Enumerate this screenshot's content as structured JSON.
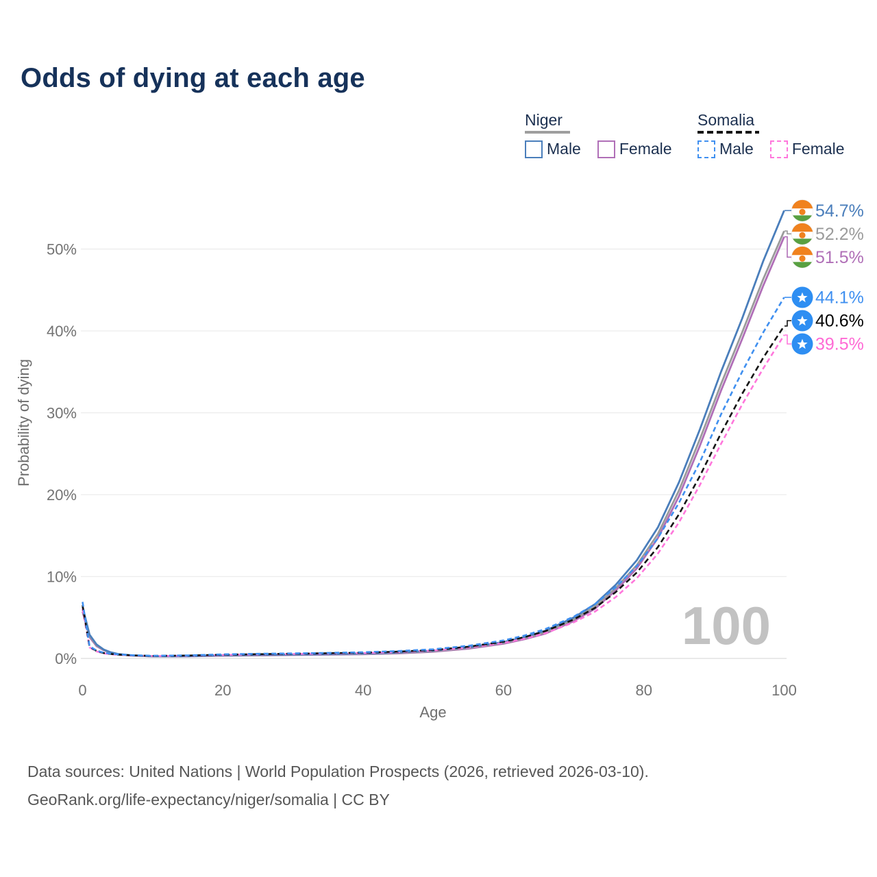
{
  "title": "Odds of dying at each age",
  "legend": {
    "groups": [
      {
        "label": "Niger",
        "line_style": "solid",
        "items": [
          {
            "label": "Male",
            "color": "#4a7ebb"
          },
          {
            "label": "Female",
            "color": "#b06fb7"
          }
        ]
      },
      {
        "label": "Somalia",
        "line_style": "dashed",
        "items": [
          {
            "label": "Male",
            "color": "#4090f0"
          },
          {
            "label": "Female",
            "color": "#ff77dc"
          }
        ]
      }
    ]
  },
  "chart_data": {
    "type": "line",
    "title": "Odds of dying at each age",
    "xlabel": "Age",
    "ylabel": "Probability of dying",
    "xlim": [
      0,
      100
    ],
    "ylim_pct": [
      0,
      57
    ],
    "x_ticks": [
      0,
      20,
      40,
      60,
      80,
      100
    ],
    "y_ticks_pct": [
      0,
      10,
      20,
      30,
      40,
      50
    ],
    "grid": "horizontal",
    "hover_age_indicator": "100",
    "flags": {
      "niger": {
        "bands": [
          "#f0821e",
          "#ffffff",
          "#58a041"
        ],
        "dot": "#f0821e"
      },
      "somalia": {
        "circle": "#2e8ef2",
        "star": "#ffffff"
      }
    },
    "series": [
      {
        "name": "Niger Female",
        "country": "niger",
        "sex": "female",
        "color": "#b06fb7",
        "dash": "solid",
        "end_label": "51.5%",
        "label_color": "#b06fb7",
        "points": [
          [
            0,
            5.7
          ],
          [
            1,
            2.6
          ],
          [
            2,
            1.5
          ],
          [
            3,
            1.0
          ],
          [
            4,
            0.67
          ],
          [
            5,
            0.5
          ],
          [
            7,
            0.34
          ],
          [
            10,
            0.24
          ],
          [
            15,
            0.25
          ],
          [
            20,
            0.33
          ],
          [
            25,
            0.37
          ],
          [
            30,
            0.42
          ],
          [
            35,
            0.46
          ],
          [
            40,
            0.52
          ],
          [
            45,
            0.62
          ],
          [
            50,
            0.82
          ],
          [
            55,
            1.2
          ],
          [
            60,
            1.8
          ],
          [
            63,
            2.35
          ],
          [
            66,
            3.05
          ],
          [
            70,
            4.55
          ],
          [
            73,
            6.05
          ],
          [
            76,
            8.3
          ],
          [
            79,
            11.0
          ],
          [
            82,
            14.7
          ],
          [
            85,
            19.8
          ],
          [
            88,
            26.0
          ],
          [
            91,
            32.7
          ],
          [
            94,
            39.0
          ],
          [
            97,
            45.5
          ],
          [
            100,
            51.5
          ]
        ]
      },
      {
        "name": "Niger Both sexes",
        "country": "niger",
        "sex": "both",
        "color": "#9b9b9b",
        "dash": "solid",
        "end_label": "52.2%",
        "label_color": "#9b9b9b",
        "points": [
          [
            0,
            6.0
          ],
          [
            1,
            2.75
          ],
          [
            2,
            1.6
          ],
          [
            3,
            1.05
          ],
          [
            4,
            0.7
          ],
          [
            5,
            0.52
          ],
          [
            7,
            0.36
          ],
          [
            10,
            0.255
          ],
          [
            15,
            0.265
          ],
          [
            20,
            0.36
          ],
          [
            25,
            0.4
          ],
          [
            30,
            0.45
          ],
          [
            35,
            0.5
          ],
          [
            40,
            0.56
          ],
          [
            45,
            0.67
          ],
          [
            50,
            0.88
          ],
          [
            55,
            1.27
          ],
          [
            60,
            1.9
          ],
          [
            63,
            2.45
          ],
          [
            66,
            3.2
          ],
          [
            70,
            4.75
          ],
          [
            73,
            6.3
          ],
          [
            76,
            8.6
          ],
          [
            79,
            11.4
          ],
          [
            82,
            15.2
          ],
          [
            85,
            20.5
          ],
          [
            88,
            26.8
          ],
          [
            91,
            33.5
          ],
          [
            94,
            39.8
          ],
          [
            97,
            46.3
          ],
          [
            100,
            52.2
          ]
        ]
      },
      {
        "name": "Niger Male",
        "country": "niger",
        "sex": "male",
        "color": "#4a7ebb",
        "dash": "solid",
        "end_label": "54.7%",
        "label_color": "#4a7ebb",
        "points": [
          [
            0,
            6.3
          ],
          [
            1,
            2.9
          ],
          [
            2,
            1.7
          ],
          [
            3,
            1.1
          ],
          [
            4,
            0.75
          ],
          [
            5,
            0.55
          ],
          [
            7,
            0.38
          ],
          [
            10,
            0.27
          ],
          [
            13,
            0.26
          ],
          [
            15,
            0.28
          ],
          [
            18,
            0.34
          ],
          [
            20,
            0.38
          ],
          [
            25,
            0.44
          ],
          [
            30,
            0.48
          ],
          [
            35,
            0.53
          ],
          [
            40,
            0.6
          ],
          [
            45,
            0.72
          ],
          [
            50,
            0.95
          ],
          [
            55,
            1.35
          ],
          [
            60,
            2.0
          ],
          [
            63,
            2.6
          ],
          [
            66,
            3.4
          ],
          [
            70,
            5.0
          ],
          [
            73,
            6.6
          ],
          [
            76,
            9.0
          ],
          [
            79,
            12.0
          ],
          [
            82,
            16.0
          ],
          [
            85,
            21.5
          ],
          [
            88,
            28.0
          ],
          [
            91,
            35.0
          ],
          [
            94,
            41.5
          ],
          [
            97,
            48.5
          ],
          [
            100,
            54.7
          ]
        ]
      },
      {
        "name": "Somalia Female",
        "country": "somalia",
        "sex": "female",
        "color": "#ff77dc",
        "dash": "dashed",
        "end_label": "39.5%",
        "label_color": "#ff6ad5",
        "points": [
          [
            0,
            6.1
          ],
          [
            1,
            1.35
          ],
          [
            2,
            0.85
          ],
          [
            3,
            0.62
          ],
          [
            4,
            0.52
          ],
          [
            5,
            0.44
          ],
          [
            7,
            0.36
          ],
          [
            10,
            0.29
          ],
          [
            15,
            0.33
          ],
          [
            20,
            0.43
          ],
          [
            25,
            0.49
          ],
          [
            30,
            0.54
          ],
          [
            35,
            0.59
          ],
          [
            40,
            0.65
          ],
          [
            45,
            0.77
          ],
          [
            50,
            0.96
          ],
          [
            55,
            1.33
          ],
          [
            60,
            1.9
          ],
          [
            63,
            2.42
          ],
          [
            66,
            3.1
          ],
          [
            70,
            4.4
          ],
          [
            73,
            5.7
          ],
          [
            76,
            7.5
          ],
          [
            79,
            9.8
          ],
          [
            82,
            12.8
          ],
          [
            85,
            16.6
          ],
          [
            88,
            21.2
          ],
          [
            91,
            26.2
          ],
          [
            94,
            31.0
          ],
          [
            97,
            35.4
          ],
          [
            100,
            39.5
          ]
        ]
      },
      {
        "name": "Somalia Both sexes",
        "country": "somalia",
        "sex": "both",
        "color": "#141414",
        "dash": "dashed",
        "end_label": "40.6%",
        "label_color": "#000000",
        "points": [
          [
            0,
            6.5
          ],
          [
            1,
            1.42
          ],
          [
            2,
            0.9
          ],
          [
            3,
            0.66
          ],
          [
            4,
            0.55
          ],
          [
            5,
            0.47
          ],
          [
            7,
            0.38
          ],
          [
            10,
            0.31
          ],
          [
            15,
            0.35
          ],
          [
            20,
            0.46
          ],
          [
            25,
            0.52
          ],
          [
            30,
            0.58
          ],
          [
            35,
            0.64
          ],
          [
            40,
            0.7
          ],
          [
            45,
            0.83
          ],
          [
            50,
            1.03
          ],
          [
            55,
            1.43
          ],
          [
            60,
            2.05
          ],
          [
            63,
            2.6
          ],
          [
            66,
            3.35
          ],
          [
            70,
            4.75
          ],
          [
            73,
            6.15
          ],
          [
            76,
            8.1
          ],
          [
            79,
            10.5
          ],
          [
            82,
            13.6
          ],
          [
            85,
            17.6
          ],
          [
            88,
            22.3
          ],
          [
            91,
            27.5
          ],
          [
            94,
            32.3
          ],
          [
            97,
            36.7
          ],
          [
            100,
            40.6
          ]
        ]
      },
      {
        "name": "Somalia Male",
        "country": "somalia",
        "sex": "male",
        "color": "#4090f0",
        "dash": "dashed",
        "end_label": "44.1%",
        "label_color": "#4090f0",
        "points": [
          [
            0,
            6.9
          ],
          [
            1,
            1.5
          ],
          [
            2,
            0.95
          ],
          [
            3,
            0.7
          ],
          [
            4,
            0.58
          ],
          [
            5,
            0.5
          ],
          [
            7,
            0.4
          ],
          [
            10,
            0.33
          ],
          [
            15,
            0.38
          ],
          [
            20,
            0.5
          ],
          [
            25,
            0.57
          ],
          [
            30,
            0.62
          ],
          [
            35,
            0.68
          ],
          [
            40,
            0.76
          ],
          [
            45,
            0.9
          ],
          [
            50,
            1.12
          ],
          [
            55,
            1.55
          ],
          [
            60,
            2.2
          ],
          [
            63,
            2.8
          ],
          [
            66,
            3.6
          ],
          [
            70,
            5.1
          ],
          [
            73,
            6.6
          ],
          [
            76,
            8.7
          ],
          [
            79,
            11.3
          ],
          [
            82,
            14.7
          ],
          [
            85,
            19.0
          ],
          [
            88,
            24.0
          ],
          [
            91,
            29.8
          ],
          [
            94,
            35.0
          ],
          [
            97,
            39.8
          ],
          [
            100,
            44.1
          ]
        ]
      }
    ],
    "label_order": [
      "Niger Male",
      "Niger Both sexes",
      "Niger Female",
      "Somalia Male",
      "Somalia Both sexes",
      "Somalia Female"
    ]
  },
  "footer": {
    "line1": "Data sources: United Nations | World Population Prospects (2026, retrieved 2026-03-10).",
    "line2": "GeoRank.org/life-expectancy/niger/somalia | CC BY"
  }
}
